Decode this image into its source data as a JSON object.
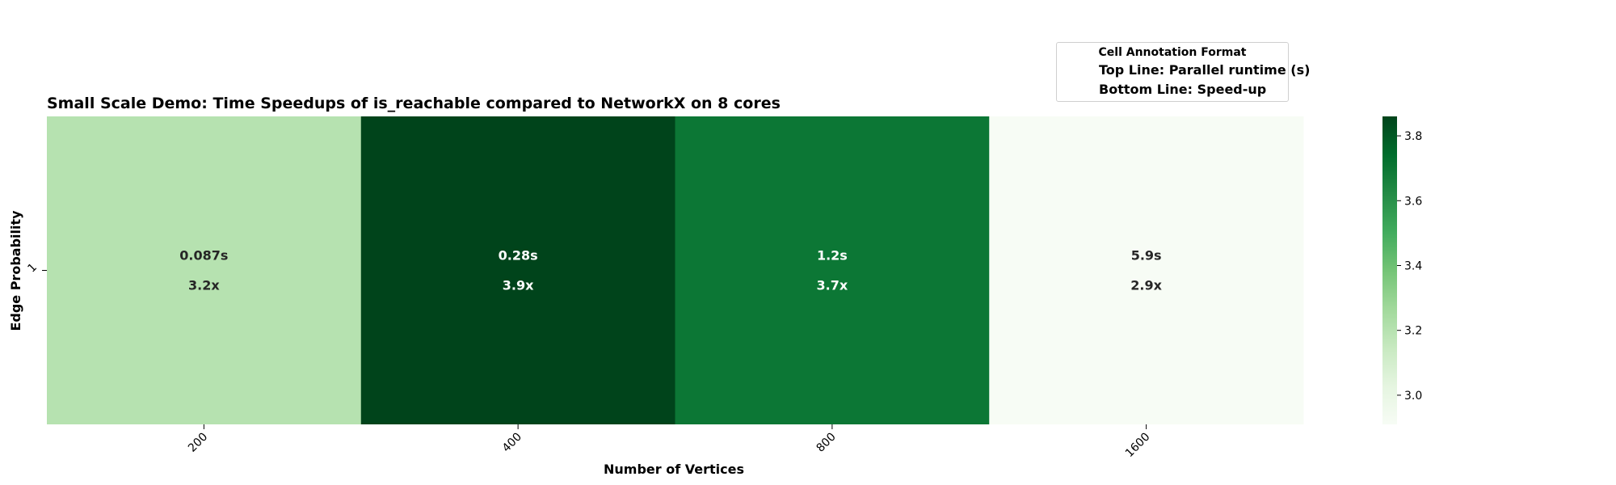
{
  "chart_data": {
    "type": "heatmap",
    "title": "Small Scale Demo: Time Speedups of is_reachable compared to NetworkX on 8 cores",
    "xlabel": "Number of Vertices",
    "ylabel": "Edge Probability",
    "x_categories": [
      "200",
      "400",
      "800",
      "1600"
    ],
    "y_categories": [
      "1"
    ],
    "cells": [
      {
        "x": "200",
        "y": "1",
        "runtime": "0.087s",
        "speedup": "3.2x",
        "value": 3.2
      },
      {
        "x": "400",
        "y": "1",
        "runtime": "0.28s",
        "speedup": "3.9x",
        "value": 3.9
      },
      {
        "x": "800",
        "y": "1",
        "runtime": "1.2s",
        "speedup": "3.7x",
        "value": 3.7
      },
      {
        "x": "1600",
        "y": "1",
        "runtime": "5.9s",
        "speedup": "2.9x",
        "value": 2.9
      }
    ],
    "colormap": "Greens",
    "colorbar": {
      "range": [
        2.91,
        3.86
      ],
      "ticks": [
        "3.0",
        "3.2",
        "3.4",
        "3.6",
        "3.8"
      ],
      "tick_values": [
        3.0,
        3.2,
        3.4,
        3.6,
        3.8
      ]
    }
  },
  "legend": {
    "title": "Cell Annotation Format",
    "line1": "Top Line: Parallel runtime (s)",
    "line2": "Bottom Line: Speed-up"
  }
}
